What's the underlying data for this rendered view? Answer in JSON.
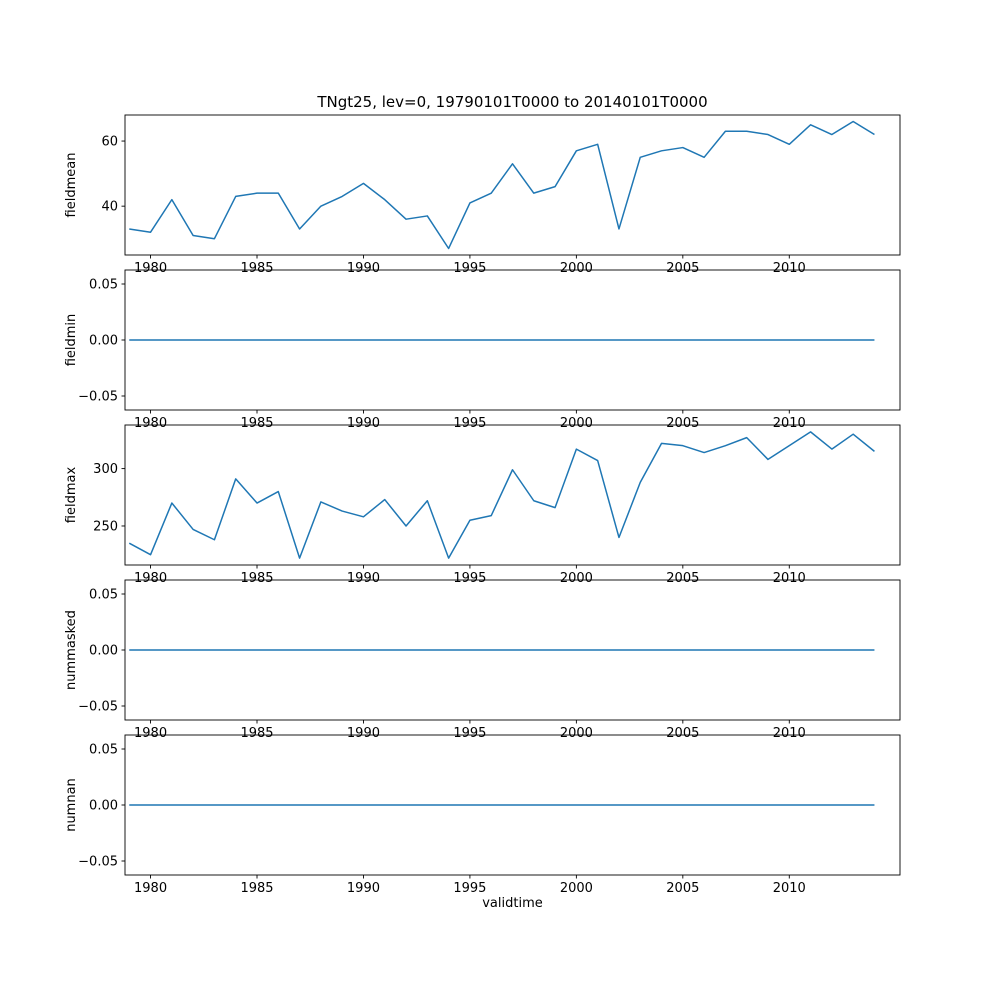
{
  "chart_data": {
    "type": "line",
    "title": "TNgt25, lev=0, 19790101T0000 to 20140101T0000",
    "xlabel": "validtime",
    "line_color": "#1f77b4",
    "x": [
      1979,
      1980,
      1981,
      1982,
      1983,
      1984,
      1985,
      1986,
      1987,
      1988,
      1989,
      1990,
      1991,
      1992,
      1993,
      1994,
      1995,
      1996,
      1997,
      1998,
      1999,
      2000,
      2001,
      2002,
      2003,
      2004,
      2005,
      2006,
      2007,
      2008,
      2009,
      2010,
      2011,
      2012,
      2013,
      2014
    ],
    "xticks": [
      1980,
      1985,
      1990,
      1995,
      2000,
      2005,
      2010
    ],
    "xtick_labels": [
      "1980",
      "1985",
      "1990",
      "1995",
      "2000",
      "2005",
      "2010"
    ],
    "xlim": [
      1978.8,
      2015.2
    ],
    "grid": false,
    "legend": "none",
    "subplots": [
      {
        "ylabel": "fieldmean",
        "ylim": [
          25,
          68
        ],
        "yticks": [
          40,
          60
        ],
        "ytick_labels": [
          "40",
          "60"
        ],
        "values": [
          33,
          32,
          42,
          31,
          30,
          43,
          44,
          44,
          33,
          40,
          43,
          47,
          42,
          36,
          37,
          27,
          41,
          44,
          53,
          44,
          46,
          57,
          59,
          33,
          55,
          57,
          58,
          55,
          63,
          63,
          62,
          59,
          65,
          62,
          66,
          62
        ]
      },
      {
        "ylabel": "fieldmin",
        "ylim": [
          -0.0625,
          0.0625
        ],
        "yticks": [
          -0.05,
          0.0,
          0.05
        ],
        "ytick_labels": [
          "−0.05",
          "0.00",
          "0.05"
        ],
        "values": [
          0,
          0,
          0,
          0,
          0,
          0,
          0,
          0,
          0,
          0,
          0,
          0,
          0,
          0,
          0,
          0,
          0,
          0,
          0,
          0,
          0,
          0,
          0,
          0,
          0,
          0,
          0,
          0,
          0,
          0,
          0,
          0,
          0,
          0,
          0,
          0
        ]
      },
      {
        "ylabel": "fieldmax",
        "ylim": [
          216,
          338
        ],
        "yticks": [
          250,
          300
        ],
        "ytick_labels": [
          "250",
          "300"
        ],
        "values": [
          235,
          225,
          270,
          247,
          238,
          291,
          270,
          280,
          222,
          271,
          263,
          258,
          273,
          250,
          272,
          222,
          255,
          259,
          299,
          272,
          266,
          317,
          307,
          240,
          288,
          322,
          320,
          314,
          320,
          327,
          308,
          320,
          332,
          317,
          330,
          315
        ]
      },
      {
        "ylabel": "nummasked",
        "ylim": [
          -0.0625,
          0.0625
        ],
        "yticks": [
          -0.05,
          0.0,
          0.05
        ],
        "ytick_labels": [
          "−0.05",
          "0.00",
          "0.05"
        ],
        "values": [
          0,
          0,
          0,
          0,
          0,
          0,
          0,
          0,
          0,
          0,
          0,
          0,
          0,
          0,
          0,
          0,
          0,
          0,
          0,
          0,
          0,
          0,
          0,
          0,
          0,
          0,
          0,
          0,
          0,
          0,
          0,
          0,
          0,
          0,
          0,
          0
        ]
      },
      {
        "ylabel": "numnan",
        "ylim": [
          -0.0625,
          0.0625
        ],
        "yticks": [
          -0.05,
          0.0,
          0.05
        ],
        "ytick_labels": [
          "−0.05",
          "0.00",
          "0.05"
        ],
        "values": [
          0,
          0,
          0,
          0,
          0,
          0,
          0,
          0,
          0,
          0,
          0,
          0,
          0,
          0,
          0,
          0,
          0,
          0,
          0,
          0,
          0,
          0,
          0,
          0,
          0,
          0,
          0,
          0,
          0,
          0,
          0,
          0,
          0,
          0,
          0,
          0
        ]
      }
    ]
  }
}
